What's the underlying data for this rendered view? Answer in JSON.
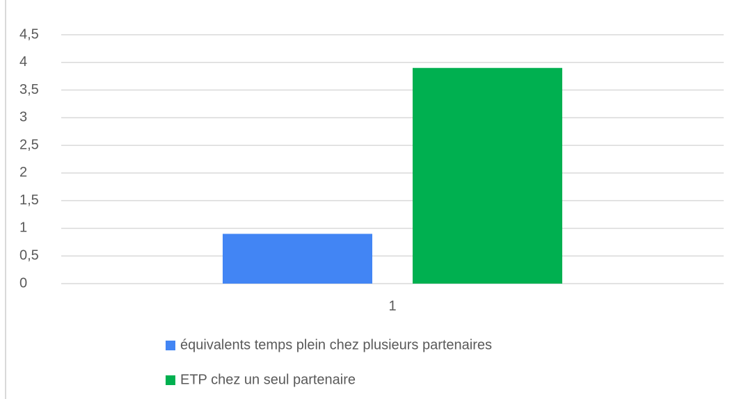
{
  "chart_data": {
    "type": "bar",
    "categories": [
      "1"
    ],
    "series": [
      {
        "name": "équivalents temps plein chez plusieurs partenaires",
        "color": "#4285f4",
        "values": [
          0.9
        ]
      },
      {
        "name": "ETP chez un seul partenaire",
        "color": "#00b050",
        "values": [
          3.9
        ]
      }
    ],
    "ylim": [
      0,
      4.5
    ],
    "yticks": [
      0,
      {
        "value": 0.5,
        "label": "0,5"
      },
      1,
      {
        "value": 1.5,
        "label": "1,5"
      },
      2,
      {
        "value": 2.5,
        "label": "2,5"
      },
      3,
      {
        "value": 3.5,
        "label": "3,5"
      },
      4,
      {
        "value": 4.5,
        "label": "4,5"
      }
    ],
    "grid": true,
    "legend": "bottom"
  }
}
